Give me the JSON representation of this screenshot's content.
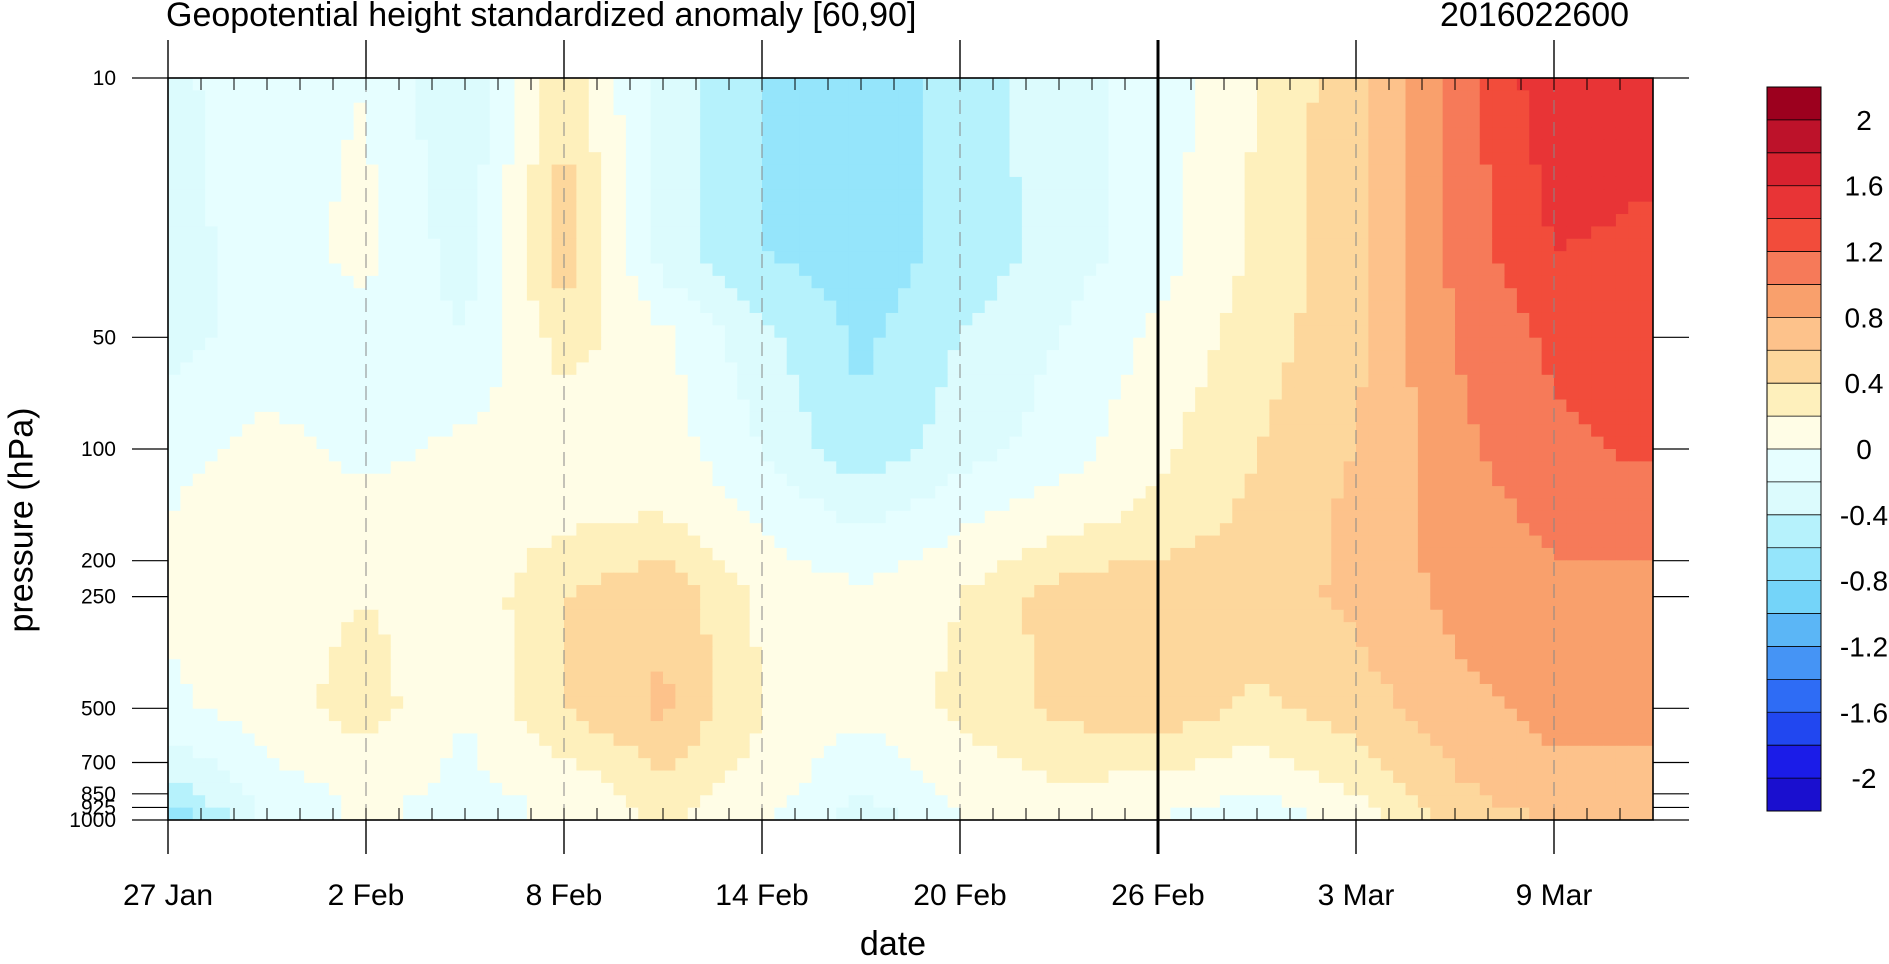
{
  "title_left": "Geopotential height standardized anomaly [60,90]",
  "title_right": "2016022600",
  "chart_data": {
    "type": "heatmap",
    "title": "Geopotential height standardized anomaly [60,90]",
    "run_label": "2016022600",
    "xlabel": "date",
    "ylabel": "pressure (hPa)",
    "x_ticks": [
      "27 Jan",
      "2 Feb",
      "8 Feb",
      "14 Feb",
      "20 Feb",
      "26 Feb",
      "3 Mar",
      "9 Mar"
    ],
    "x_range": [
      "2016-01-27",
      "2016-03-12"
    ],
    "y_scale": "log",
    "y_reversed": true,
    "y_ticks": [
      10,
      50,
      100,
      200,
      250,
      500,
      700,
      850,
      925,
      1000
    ],
    "y_tick_labels": [
      "10",
      "50",
      "100",
      "200",
      "250",
      "500",
      "700",
      "850",
      "925",
      "1000"
    ],
    "y_range": [
      1000,
      10
    ],
    "vertical_marker_date": "2016-02-26",
    "gridlines": "dashed vertical at major date ticks",
    "colorbar": {
      "levels": [
        -2.2,
        -2,
        -1.8,
        -1.6,
        -1.4,
        -1.2,
        -1,
        -0.8,
        -0.6,
        -0.4,
        -0.2,
        0,
        0.2,
        0.4,
        0.6,
        0.8,
        1,
        1.2,
        1.4,
        1.6,
        1.8,
        2,
        2.2
      ],
      "labels": [
        "2",
        "1.6",
        "1.2",
        "0.8",
        "0.4",
        "0",
        "-0.4",
        "-0.8",
        "-1.2",
        "-1.6",
        "-2"
      ],
      "label_values": [
        2,
        1.6,
        1.2,
        0.8,
        0.4,
        0,
        -0.4,
        -0.8,
        -1.2,
        -1.6,
        -2
      ],
      "colors_neg": [
        "#1a0fcf",
        "#1b1ce8",
        "#2147f0",
        "#2e6cf5",
        "#4594f5",
        "#5bb6f6",
        "#74d4f9",
        "#95e5fb",
        "#b6f2fc",
        "#dcfbfd",
        "#e6feff"
      ],
      "colors_pos": [
        "#fffde6",
        "#fef0bc",
        "#fdd79c",
        "#fdc28b",
        "#f9a06c",
        "#f67a59",
        "#f24c3b",
        "#e83436",
        "#d8222f",
        "#bd122a",
        "#9c001e"
      ]
    },
    "nodes": {
      "times": [
        "2016-01-27",
        "2016-01-30",
        "2016-02-02",
        "2016-02-05",
        "2016-02-08",
        "2016-02-11",
        "2016-02-14",
        "2016-02-17",
        "2016-02-20",
        "2016-02-23",
        "2016-02-26",
        "2016-02-29",
        "2016-03-03",
        "2016-03-06",
        "2016-03-09",
        "2016-03-12"
      ],
      "levels_hpa": [
        10,
        30,
        50,
        100,
        150,
        250,
        500,
        850,
        1000
      ],
      "values": [
        [
          -0.25,
          -0.08,
          0.0,
          -0.4,
          0.35,
          -0.3,
          -0.6,
          -0.75,
          -0.5,
          -0.3,
          -0.1,
          0.2,
          0.55,
          1.1,
          1.55,
          1.5
        ],
        [
          -0.3,
          -0.08,
          0.05,
          -0.3,
          0.55,
          -0.3,
          -0.6,
          -0.7,
          -0.55,
          -0.3,
          -0.1,
          0.25,
          0.55,
          1.05,
          1.4,
          1.35
        ],
        [
          -0.28,
          -0.1,
          -0.05,
          -0.2,
          0.3,
          0.05,
          -0.35,
          -0.65,
          -0.4,
          -0.2,
          0.05,
          0.3,
          0.55,
          1.0,
          1.25,
          1.3
        ],
        [
          -0.05,
          0.05,
          -0.05,
          0.05,
          0.05,
          0.1,
          -0.2,
          -0.55,
          -0.3,
          -0.1,
          0.15,
          0.4,
          0.6,
          0.95,
          1.15,
          1.25
        ],
        [
          0.0,
          0.1,
          0.05,
          0.05,
          0.15,
          0.2,
          -0.05,
          -0.25,
          -0.05,
          0.1,
          0.25,
          0.45,
          0.65,
          0.9,
          1.05,
          1.05
        ],
        [
          0.05,
          0.1,
          0.2,
          0.05,
          0.4,
          0.55,
          0.15,
          0.05,
          0.2,
          0.5,
          0.55,
          0.5,
          0.65,
          0.85,
          0.95,
          0.95
        ],
        [
          -0.05,
          0.1,
          0.3,
          0.0,
          0.4,
          0.65,
          0.2,
          0.05,
          0.25,
          0.45,
          0.55,
          0.35,
          0.5,
          0.75,
          0.85,
          0.85
        ],
        [
          -0.5,
          -0.1,
          0.05,
          -0.05,
          0.05,
          0.3,
          0.1,
          -0.2,
          0.05,
          0.15,
          0.1,
          0.0,
          0.2,
          0.55,
          0.75,
          0.75
        ],
        [
          -0.85,
          -0.15,
          0.05,
          -0.1,
          0.05,
          0.25,
          0.05,
          -0.35,
          0.0,
          0.05,
          0.0,
          -0.15,
          0.1,
          0.45,
          0.6,
          0.65
        ]
      ]
    }
  }
}
